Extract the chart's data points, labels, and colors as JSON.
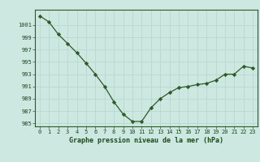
{
  "x": [
    0,
    1,
    2,
    3,
    4,
    5,
    6,
    7,
    8,
    9,
    10,
    11,
    12,
    13,
    14,
    15,
    16,
    17,
    18,
    19,
    20,
    21,
    22,
    23
  ],
  "y": [
    1002.5,
    1001.5,
    999.5,
    998.0,
    996.5,
    994.8,
    993.0,
    991.0,
    988.5,
    986.5,
    985.3,
    985.3,
    987.5,
    989.0,
    990.0,
    990.8,
    991.0,
    991.3,
    991.5,
    992.0,
    993.0,
    993.0,
    994.3,
    994.0
  ],
  "xlabel": "Graphe pression niveau de la mer (hPa)",
  "ylim": [
    984.5,
    1003.5
  ],
  "yticks": [
    985,
    987,
    989,
    991,
    993,
    995,
    997,
    999,
    1001
  ],
  "xticks": [
    0,
    1,
    2,
    3,
    4,
    5,
    6,
    7,
    8,
    9,
    10,
    11,
    12,
    13,
    14,
    15,
    16,
    17,
    18,
    19,
    20,
    21,
    22,
    23
  ],
  "line_color": "#2d5a27",
  "marker_color": "#2d5a27",
  "bg_color": "#cce8e0",
  "grid_color": "#b8d8d0",
  "text_color": "#1a4a1a",
  "font_family": "monospace"
}
